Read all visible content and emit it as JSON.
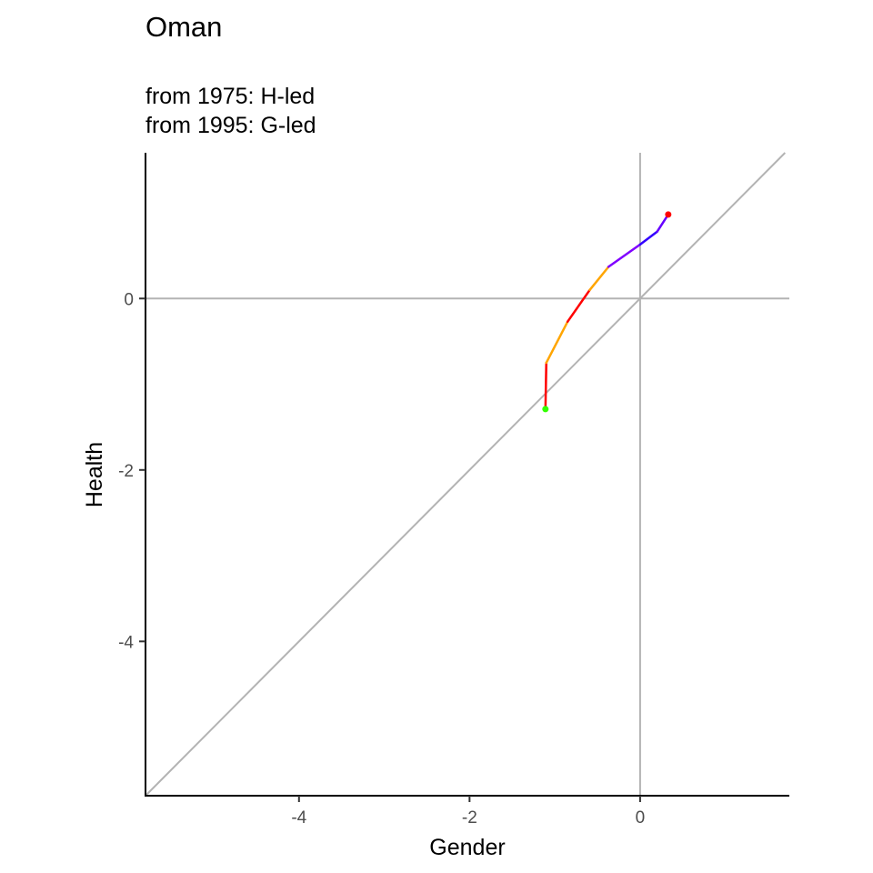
{
  "chart_data": {
    "type": "line",
    "title": "Oman",
    "subtitle_lines": [
      "from 1975:  H-led",
      "from 1995:  G-led"
    ],
    "xlabel": "Gender",
    "ylabel": "Health",
    "xlim": [
      -5.8,
      1.75
    ],
    "ylim": [
      -5.8,
      1.7
    ],
    "x_ticks": [
      {
        "value": -4,
        "label": "-4"
      },
      {
        "value": -2,
        "label": "-2"
      },
      {
        "value": 0,
        "label": "0"
      }
    ],
    "y_ticks": [
      {
        "value": 0,
        "label": "0"
      },
      {
        "value": -2,
        "label": "-2"
      },
      {
        "value": -4,
        "label": "-4"
      }
    ],
    "reference_lines": {
      "hline_y": 0,
      "vline_x": 0,
      "diagonal_slope": 1,
      "color": "#b3b3b3"
    },
    "series": [
      {
        "points": [
          {
            "x": -1.11,
            "y": -1.29
          },
          {
            "x": -1.1,
            "y": -0.75
          },
          {
            "x": -0.85,
            "y": -0.27
          },
          {
            "x": -0.59,
            "y": 0.1
          },
          {
            "x": -0.37,
            "y": 0.37
          },
          {
            "x": 0.0,
            "y": 0.63
          },
          {
            "x": 0.2,
            "y": 0.78
          },
          {
            "x": 0.33,
            "y": 0.98
          }
        ],
        "segment_colors": [
          "#ff0000",
          "#ffa500",
          "#ff0000",
          "#ffa500",
          "#8000ff",
          "#3300ff",
          "#6600ff"
        ],
        "start_marker_color": "#33ff00",
        "end_marker_color": "#ff0000"
      }
    ]
  }
}
